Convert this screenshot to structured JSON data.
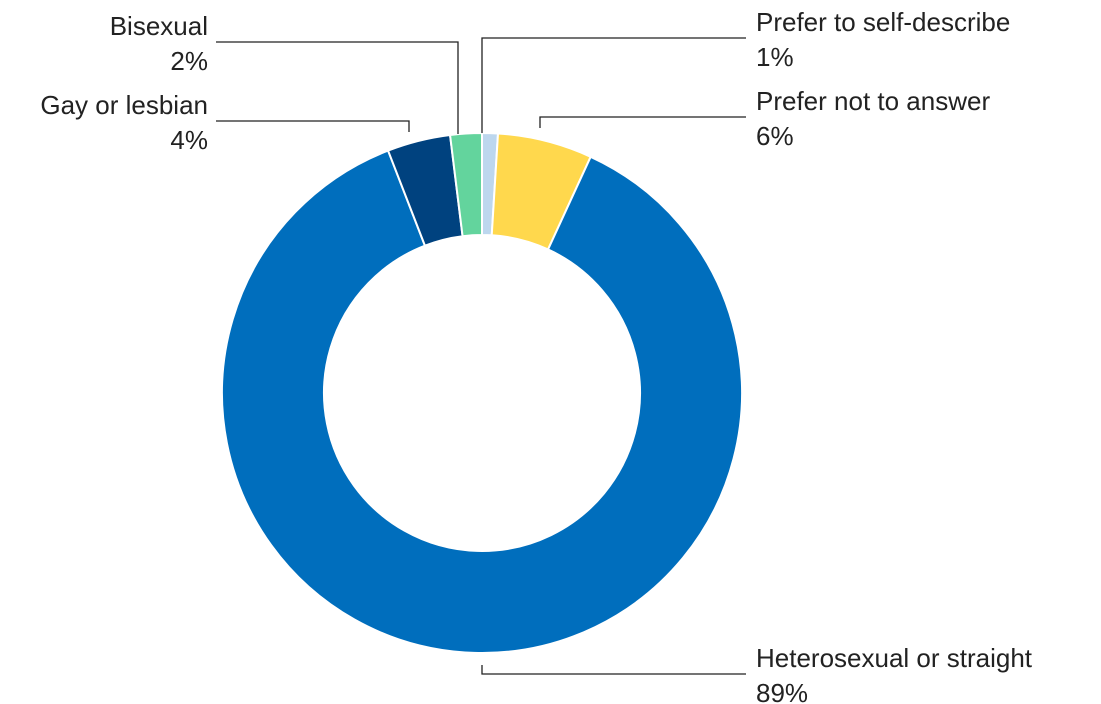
{
  "chart_data": {
    "type": "pie",
    "donut": true,
    "categories": [
      "Prefer to self-describe",
      "Prefer not to answer",
      "Heterosexual or straight",
      "Gay or lesbian",
      "Bisexual"
    ],
    "values": [
      1,
      6,
      89,
      4,
      2
    ],
    "value_labels": [
      "1%",
      "6%",
      "89%",
      "4%",
      "2%"
    ],
    "colors": [
      "#bdd7ee",
      "#ffd84d",
      "#006ebd",
      "#00427f",
      "#63d49d"
    ],
    "legend": "none"
  }
}
